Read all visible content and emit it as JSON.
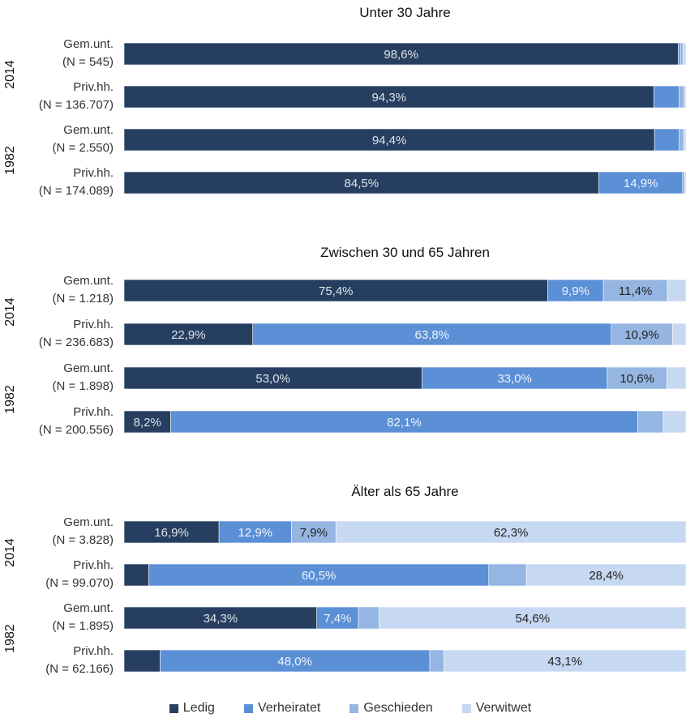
{
  "chart_data": {
    "type": "bar",
    "orientation": "horizontal",
    "stacked": true,
    "percent_stacked": true,
    "series": [
      {
        "name": "Ledig",
        "color": "#263f61"
      },
      {
        "name": "Verheiratet",
        "color": "#5b8fd6"
      },
      {
        "name": "Geschieden",
        "color": "#95b6e3"
      },
      {
        "name": "Verwitwet",
        "color": "#c7d8f2"
      }
    ],
    "legend_position": "bottom",
    "panels": [
      {
        "title": "Unter 30 Jahre",
        "groups": [
          {
            "year": "2014",
            "rows": [
              {
                "label_line1": "Gem.unt.",
                "label_line2": "(N = 545)",
                "values": [
                  98.6,
                  0.4,
                  0.5,
                  0.5
                ],
                "value_labels": [
                  "98,6%",
                  "",
                  "",
                  ""
                ]
              },
              {
                "label_line1": "Priv.hh.",
                "label_line2": "(N = 136.707)",
                "values": [
                  94.3,
                  4.5,
                  0.9,
                  0.3
                ],
                "value_labels": [
                  "94,3%",
                  "",
                  "",
                  ""
                ]
              }
            ]
          },
          {
            "year": "1982",
            "rows": [
              {
                "label_line1": "Gem.unt.",
                "label_line2": "(N = 2.550)",
                "values": [
                  94.4,
                  4.4,
                  0.8,
                  0.4
                ],
                "value_labels": [
                  "94,4%",
                  "",
                  "",
                  ""
                ]
              },
              {
                "label_line1": "Priv.hh.",
                "label_line2": "(N = 174.089)",
                "values": [
                  84.5,
                  14.9,
                  0.4,
                  0.2
                ],
                "value_labels": [
                  "84,5%",
                  "14,9%",
                  "",
                  ""
                ]
              }
            ]
          }
        ]
      },
      {
        "title": "Zwischen 30 und 65 Jahren",
        "groups": [
          {
            "year": "2014",
            "rows": [
              {
                "label_line1": "Gem.unt.",
                "label_line2": "(N = 1.218)",
                "values": [
                  75.4,
                  9.9,
                  11.4,
                  3.3
                ],
                "value_labels": [
                  "75,4%",
                  "9,9%",
                  "11,4%",
                  ""
                ]
              },
              {
                "label_line1": "Priv.hh.",
                "label_line2": "(N = 236.683)",
                "values": [
                  22.9,
                  63.8,
                  10.9,
                  2.4
                ],
                "value_labels": [
                  "22,9%",
                  "63,8%",
                  "10,9%",
                  ""
                ]
              }
            ]
          },
          {
            "year": "1982",
            "rows": [
              {
                "label_line1": "Gem.unt.",
                "label_line2": "(N = 1.898)",
                "values": [
                  53.0,
                  33.0,
                  10.6,
                  3.4
                ],
                "value_labels": [
                  "53,0%",
                  "33,0%",
                  "10,6%",
                  ""
                ]
              },
              {
                "label_line1": "Priv.hh.",
                "label_line2": "(N = 200.556)",
                "values": [
                  8.2,
                  82.1,
                  4.5,
                  4.0
                ],
                "value_labels": [
                  "8,2%",
                  "82,1%",
                  "",
                  ""
                ]
              }
            ]
          }
        ]
      },
      {
        "title": "Älter als 65 Jahre",
        "groups": [
          {
            "year": "2014",
            "rows": [
              {
                "label_line1": "Gem.unt.",
                "label_line2": "(N = 3.828)",
                "values": [
                  16.9,
                  12.9,
                  7.9,
                  62.3
                ],
                "value_labels": [
                  "16,9%",
                  "12,9%",
                  "7,9%",
                  "62,3%"
                ]
              },
              {
                "label_line1": "Priv.hh.",
                "label_line2": "(N = 99.070)",
                "values": [
                  4.4,
                  60.5,
                  6.7,
                  28.4
                ],
                "value_labels": [
                  "",
                  "60,5%",
                  "",
                  "28,4%"
                ]
              }
            ]
          },
          {
            "year": "1982",
            "rows": [
              {
                "label_line1": "Gem.unt.",
                "label_line2": "(N = 1.895)",
                "values": [
                  34.3,
                  7.4,
                  3.7,
                  54.6
                ],
                "value_labels": [
                  "34,3%",
                  "7,4%",
                  "",
                  "54,6%"
                ]
              },
              {
                "label_line1": "Priv.hh.",
                "label_line2": "(N = 62.166)",
                "values": [
                  6.4,
                  48.0,
                  2.5,
                  43.1
                ],
                "value_labels": [
                  "",
                  "48,0%",
                  "",
                  "43,1%"
                ]
              }
            ]
          }
        ]
      }
    ]
  }
}
